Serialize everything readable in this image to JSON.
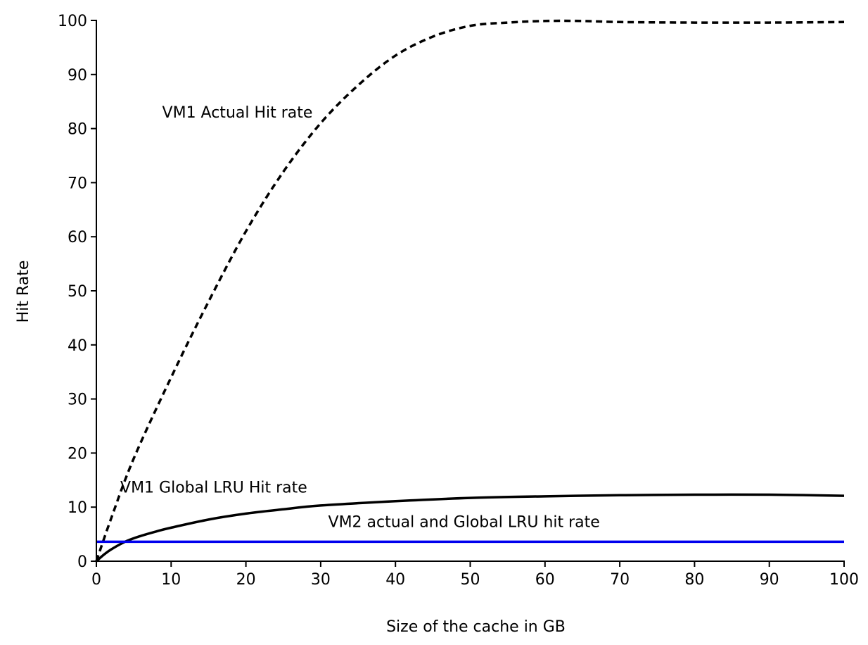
{
  "chart_data": {
    "type": "line",
    "title": "",
    "xlabel": "Size of the cache in GB",
    "ylabel": "Hit Rate",
    "xlim": [
      0,
      100
    ],
    "ylim": [
      0,
      100
    ],
    "x_ticks": [
      0,
      10,
      20,
      30,
      40,
      50,
      60,
      70,
      80,
      90,
      100
    ],
    "y_ticks": [
      0,
      10,
      20,
      30,
      40,
      50,
      60,
      70,
      80,
      90,
      100
    ],
    "grid": false,
    "legend": "none",
    "series": [
      {
        "label": "VM1 Actual Hit rate",
        "color": "#000000",
        "style": "dashed",
        "x": [
          0,
          2,
          5,
          10,
          15,
          20,
          25,
          30,
          35,
          40,
          45,
          50,
          55,
          60,
          65,
          70,
          80,
          90,
          100
        ],
        "y": [
          0,
          8,
          19,
          34,
          48,
          61,
          72,
          81,
          88,
          93.5,
          97,
          99,
          99.6,
          99.9,
          99.9,
          99.7,
          99.6,
          99.6,
          99.7
        ]
      },
      {
        "label": "VM1 Global LRU Hit rate",
        "color": "#000000",
        "style": "solid",
        "x": [
          0,
          1,
          2,
          4,
          6,
          8,
          10,
          15,
          20,
          25,
          30,
          40,
          50,
          60,
          70,
          80,
          90,
          100
        ],
        "y": [
          0,
          1.2,
          2.2,
          3.7,
          4.7,
          5.5,
          6.2,
          7.7,
          8.8,
          9.6,
          10.3,
          11.1,
          11.7,
          12.0,
          12.2,
          12.3,
          12.3,
          12.1
        ]
      },
      {
        "label": "VM2 actual and Global LRU hit rate",
        "color": "#0000ee",
        "style": "solid",
        "x": [
          0,
          100
        ],
        "y": [
          3.6,
          3.6
        ]
      }
    ],
    "annotations": [
      {
        "text": "VM1 Actual Hit rate",
        "x": 8.8,
        "y": 82
      },
      {
        "text": "VM1 Global LRU Hit rate",
        "x": 3.2,
        "y": 12.7
      },
      {
        "text": "VM2 actual and Global LRU hit rate",
        "x": 31,
        "y": 6.3
      }
    ]
  }
}
